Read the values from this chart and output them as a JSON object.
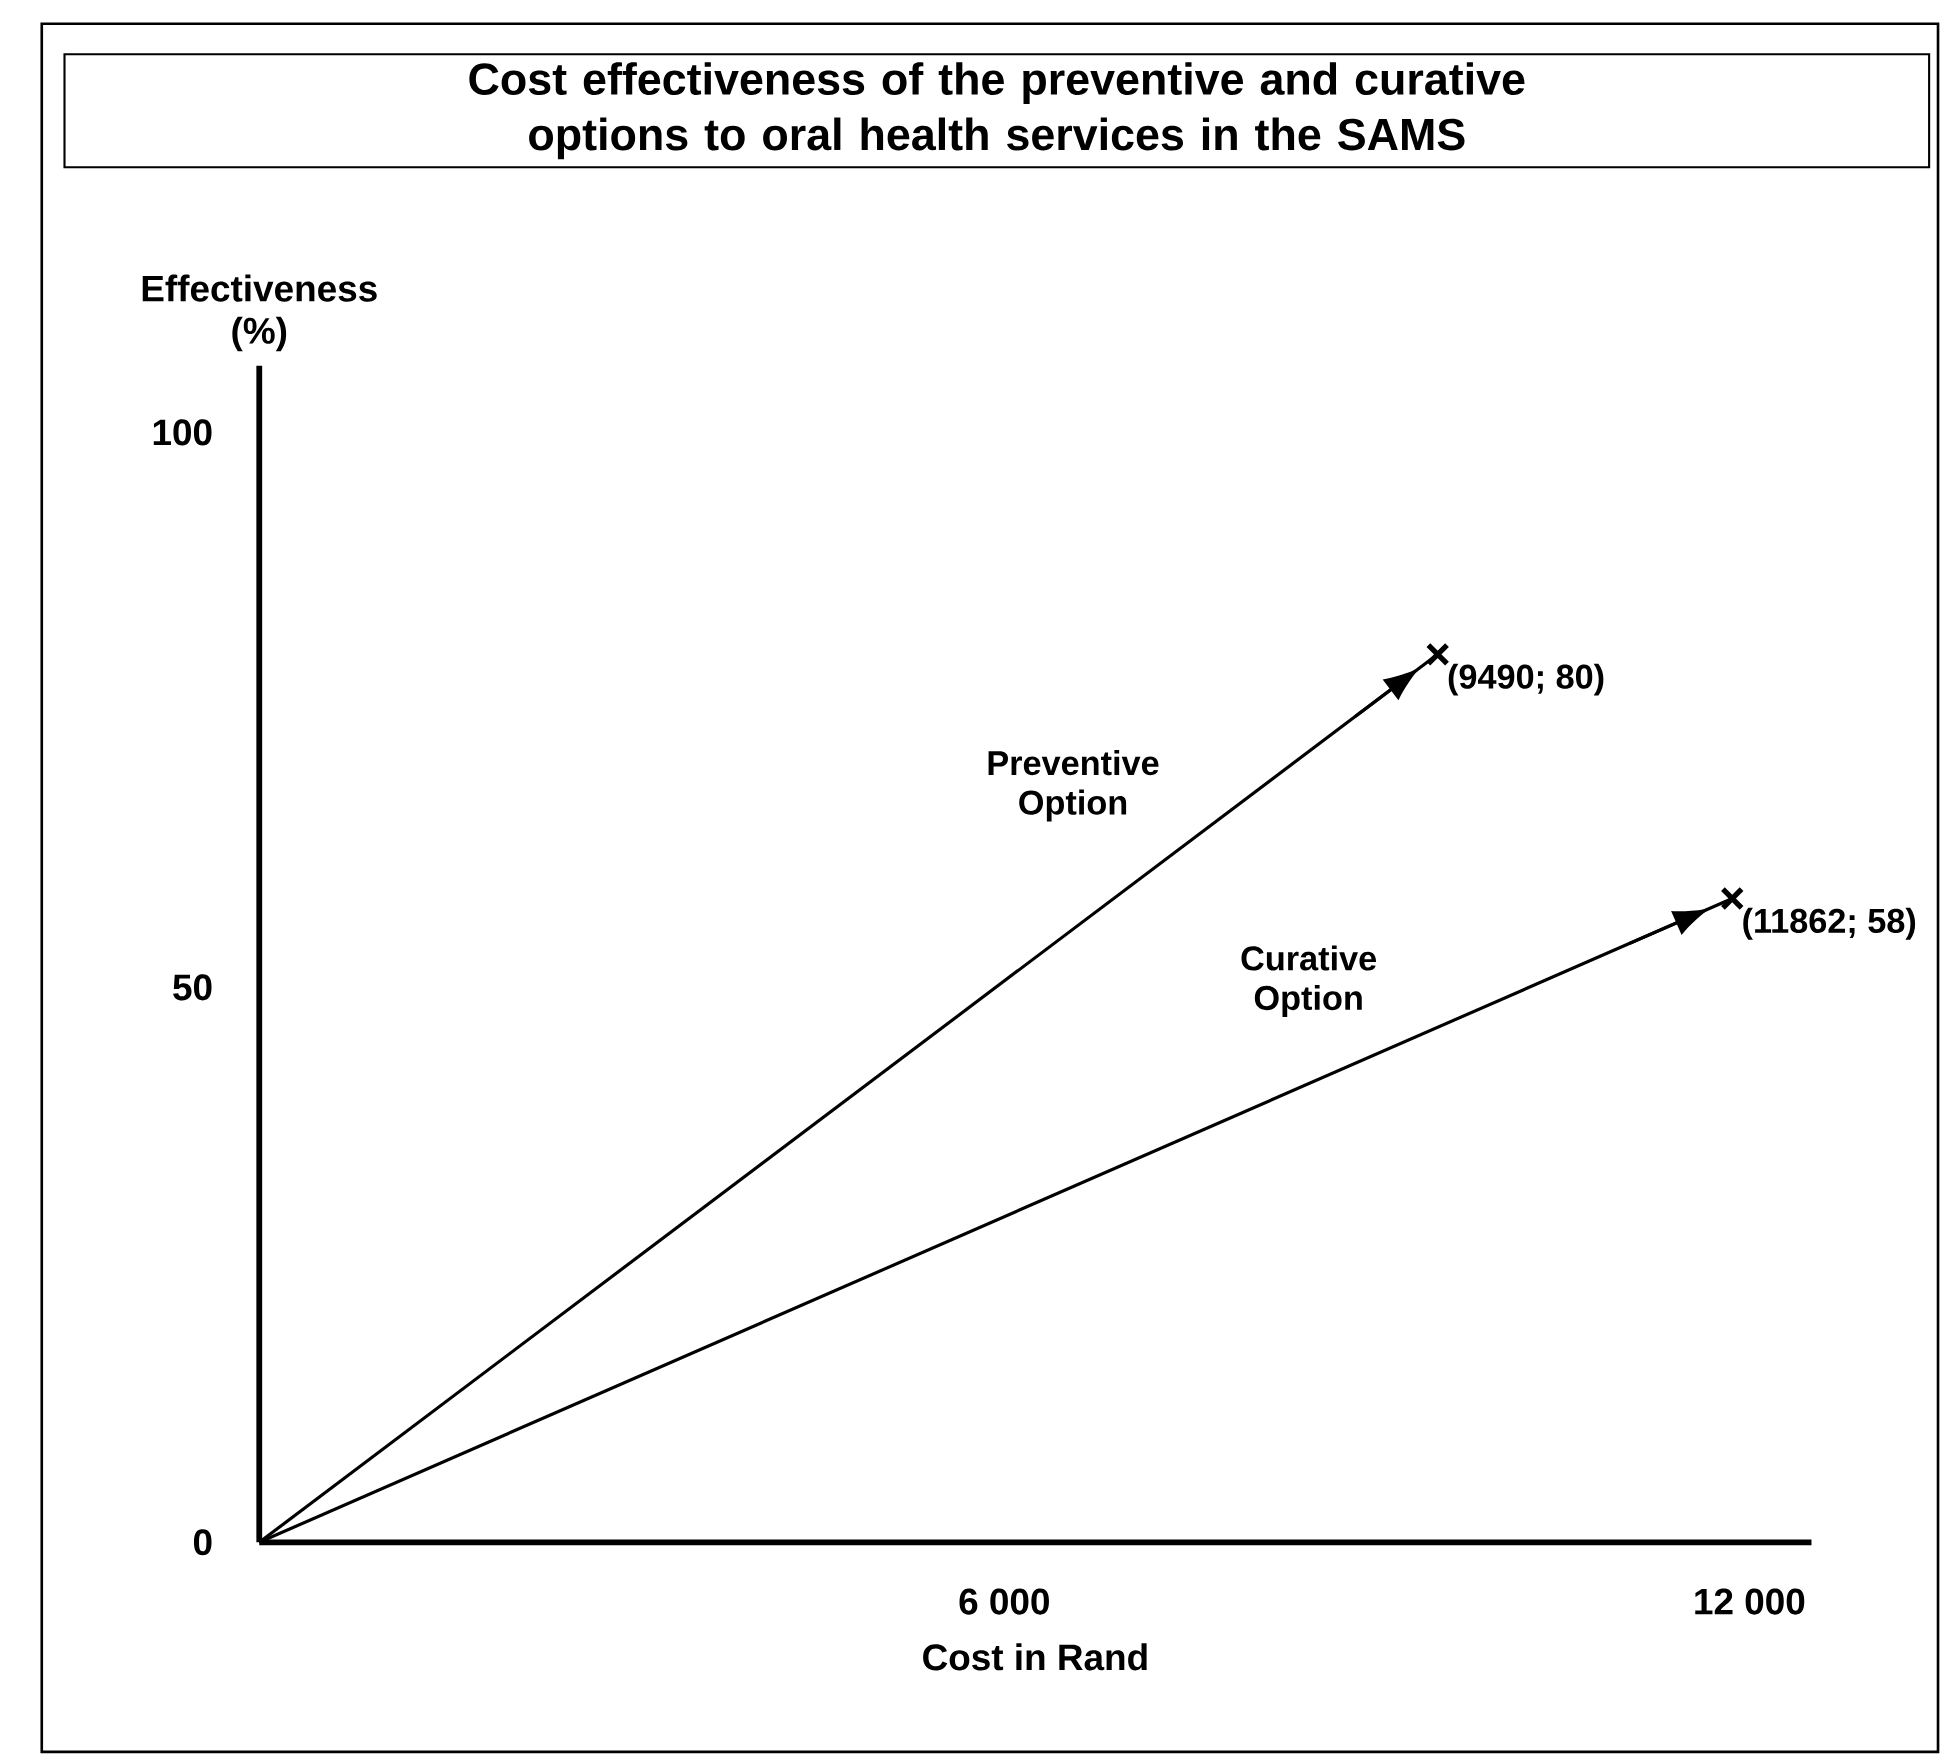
{
  "chart_data": {
    "type": "line",
    "title": "Cost effectiveness of the preventive and curative options to oral health services in the SAMS",
    "xlabel": "Cost in Rand",
    "ylabel": "Effectiveness (%)",
    "series": [
      {
        "name": "Preventive Option",
        "color": "#000000",
        "x": [
          0,
          9490
        ],
        "values": [
          0,
          80
        ]
      },
      {
        "name": "Curative Option",
        "color": "#000000",
        "x": [
          0,
          11862
        ],
        "values": [
          0,
          58
        ]
      },
      {
        "type": "scatter",
        "color": "#000000",
        "marker": "cross",
        "x": [
          9490,
          11862
        ],
        "values": [
          80,
          58
        ]
      }
    ],
    "xlim": [
      0,
      12500
    ],
    "ylim": [
      0,
      106
    ],
    "xticks": [
      {
        "value": 6000,
        "label": "6 000"
      },
      {
        "value": 12000,
        "label": "12 000"
      }
    ],
    "yticks": [
      0,
      50,
      100
    ],
    "grid": false,
    "annotations": [
      {
        "text": "(9490; 80)",
        "x": 9490,
        "y": 80
      },
      {
        "text": "(11862; 58)",
        "x": 11862,
        "y": 58
      }
    ]
  }
}
